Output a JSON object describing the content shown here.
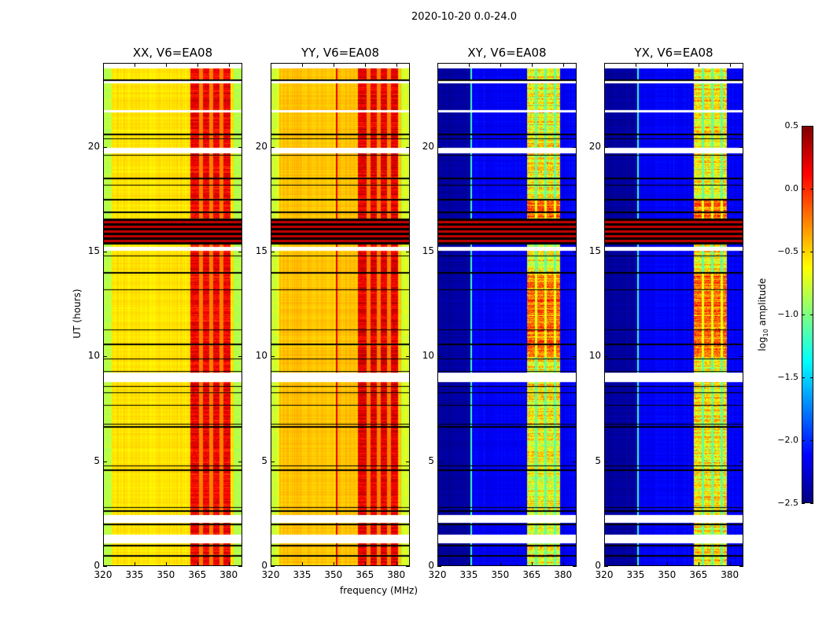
{
  "chart_data": {
    "type": "heatmap",
    "title": "2020-10-20 0.0-24.0",
    "xlabel": "frequency (MHz)",
    "ylabel": "UT (hours)",
    "xlim": [
      320,
      386.5
    ],
    "ylim": [
      0,
      24
    ],
    "xticks": [
      320,
      335,
      350,
      365,
      380
    ],
    "yticks": [
      0,
      5,
      10,
      15,
      20
    ],
    "panels": [
      {
        "title": "XX, V6=EA08",
        "kind": "parallel",
        "background": -0.55,
        "band": [
          361.5,
          380.5
        ],
        "band_level": 0.15
      },
      {
        "title": "YY, V6=EA08",
        "kind": "parallel",
        "background": -0.45,
        "band": [
          361.5,
          380.5
        ],
        "band_level": 0.2,
        "rfi_channel": 351.5
      },
      {
        "title": "XY, V6=EA08",
        "kind": "cross",
        "background": -2.15,
        "band": [
          362.5,
          378.5
        ],
        "band_level": -0.6,
        "rfi_channel": 336
      },
      {
        "title": "YX, V6=EA08",
        "kind": "cross",
        "background": -2.15,
        "band": [
          362.5,
          378.5
        ],
        "band_level": -0.6,
        "rfi_channel": 336
      }
    ],
    "flagged_hours": [
      [
        23.75,
        24
      ],
      [
        23.05,
        23.2
      ],
      [
        21.65,
        21.75
      ],
      [
        19.7,
        19.95
      ],
      [
        15.05,
        15.25
      ],
      [
        8.8,
        9.25
      ],
      [
        2.1,
        2.45
      ],
      [
        1.1,
        1.5
      ]
    ],
    "black_lines_hours": [
      23.2,
      20.6,
      20.4,
      19.6,
      18.5,
      18.2,
      17.5,
      16.9,
      14.8,
      14.0,
      13.2,
      11.3,
      10.6,
      9.9,
      9.3,
      8.6,
      8.3,
      7.7,
      6.8,
      6.65,
      4.8,
      4.6,
      2.8,
      2.65,
      2.0,
      1.0,
      0.5
    ],
    "black_block_hours": [
      15.35,
      16.6
    ],
    "colorbar": {
      "label": "log10 amplitude",
      "label_main": "log",
      "label_sub": "10",
      "label_rest": " amplitude",
      "range": [
        -2.5,
        0.5
      ],
      "ticks": [
        "0.5",
        "0.0",
        "−0.5",
        "−1.0",
        "−1.5",
        "−2.0",
        "−2.5"
      ],
      "tick_values": [
        0.5,
        0.0,
        -0.5,
        -1.0,
        -1.5,
        -2.0,
        -2.5
      ],
      "colormap": "jet"
    }
  }
}
